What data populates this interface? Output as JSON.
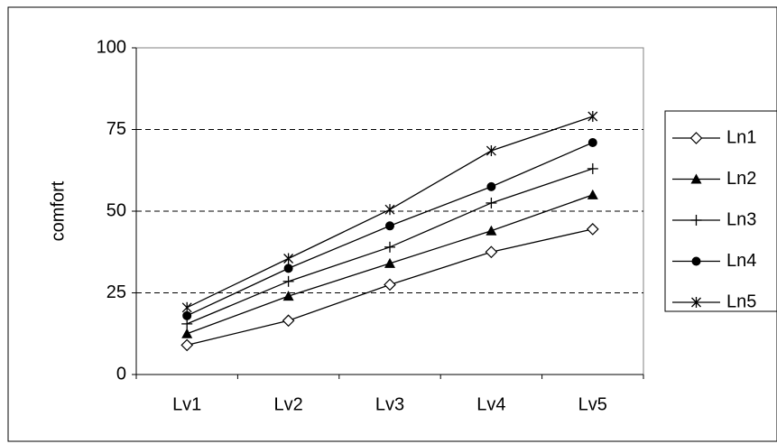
{
  "chart_data": {
    "type": "line",
    "ylabel": "comfort",
    "xlabel": "",
    "categories": [
      "Lv1",
      "Lv2",
      "Lv3",
      "Lv4",
      "Lv5"
    ],
    "ylim": [
      0,
      100
    ],
    "yticks": [
      0,
      25,
      50,
      75,
      100
    ],
    "grid": "horizontal dashed at 25, 50, 75",
    "legend_position": "right",
    "series": [
      {
        "name": "Ln1",
        "marker": "diamond-open",
        "values": [
          9,
          16.5,
          27.5,
          37.5,
          44.5
        ]
      },
      {
        "name": "Ln2",
        "marker": "triangle-filled",
        "values": [
          12.5,
          24,
          34,
          44,
          55
        ]
      },
      {
        "name": "Ln3",
        "marker": "plus",
        "values": [
          15.5,
          28.5,
          39,
          52.5,
          63
        ]
      },
      {
        "name": "Ln4",
        "marker": "circle-filled",
        "values": [
          18,
          32.5,
          45.5,
          57.5,
          71
        ]
      },
      {
        "name": "Ln5",
        "marker": "asterisk",
        "values": [
          20.5,
          35.5,
          50.5,
          68.5,
          79
        ]
      }
    ]
  }
}
